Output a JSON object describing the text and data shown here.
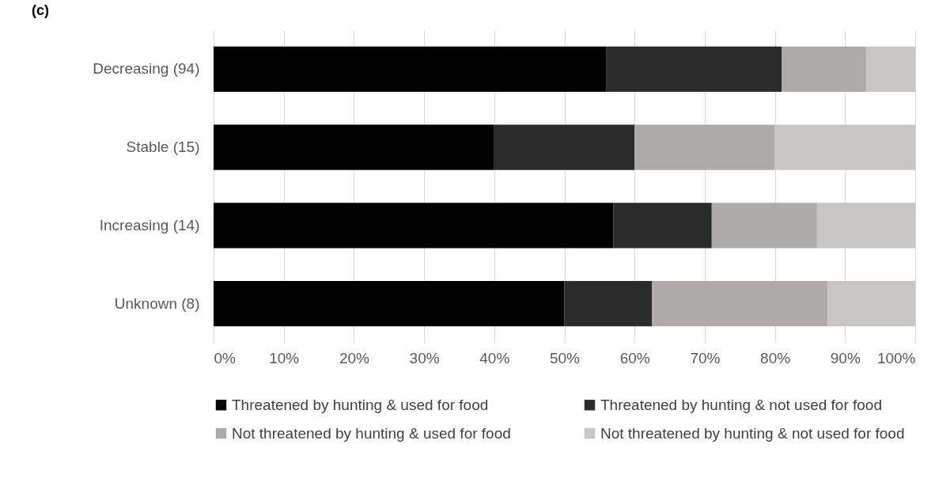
{
  "chart_data": {
    "type": "bar",
    "title": "(c)",
    "orientation": "horizontal",
    "stacked": true,
    "categories": [
      "Decreasing (94)",
      "Stable (15)",
      "Increasing (14)",
      "Unknown (8)"
    ],
    "series": [
      {
        "name": "Threatened by hunting & used for food",
        "color": "#000000",
        "values": [
          56,
          40,
          57,
          50
        ]
      },
      {
        "name": "Threatened by hunting & not used for food",
        "color": "#2b2b2b",
        "values": [
          25,
          20,
          14,
          12.5
        ]
      },
      {
        "name": "Not threatened by hunting & used for food",
        "color": "#aeaaaa",
        "values": [
          12,
          20,
          15,
          25
        ]
      },
      {
        "name": "Not threatened by hunting & not used for food",
        "color": "#c8c5c5",
        "values": [
          7,
          20,
          14,
          12.5
        ]
      }
    ],
    "xlim": [
      0,
      100
    ],
    "xticks": [
      {
        "value": 0,
        "label": "0%"
      },
      {
        "value": 10,
        "label": "10%"
      },
      {
        "value": 20,
        "label": "20%"
      },
      {
        "value": 30,
        "label": "30%"
      },
      {
        "value": 40,
        "label": "40%"
      },
      {
        "value": 50,
        "label": "50%"
      },
      {
        "value": 60,
        "label": "60%"
      },
      {
        "value": 70,
        "label": "70%"
      },
      {
        "value": 80,
        "label": "80%"
      },
      {
        "value": 90,
        "label": "90%"
      },
      {
        "value": 100,
        "label": "100%"
      }
    ],
    "grid": "x",
    "legend": "bottom"
  }
}
